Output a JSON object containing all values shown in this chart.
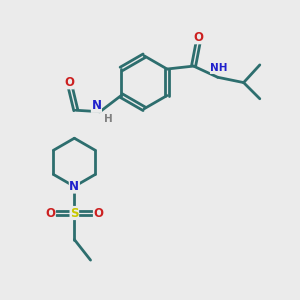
{
  "bg_color": "#ebebeb",
  "bond_color": "#2d6e6e",
  "N_color": "#2020cc",
  "O_color": "#cc2020",
  "S_color": "#c8c800",
  "H_color": "#808080",
  "lw": 2.0,
  "fs": 8.5,
  "xlim": [
    0,
    10
  ],
  "ylim": [
    0,
    10
  ]
}
